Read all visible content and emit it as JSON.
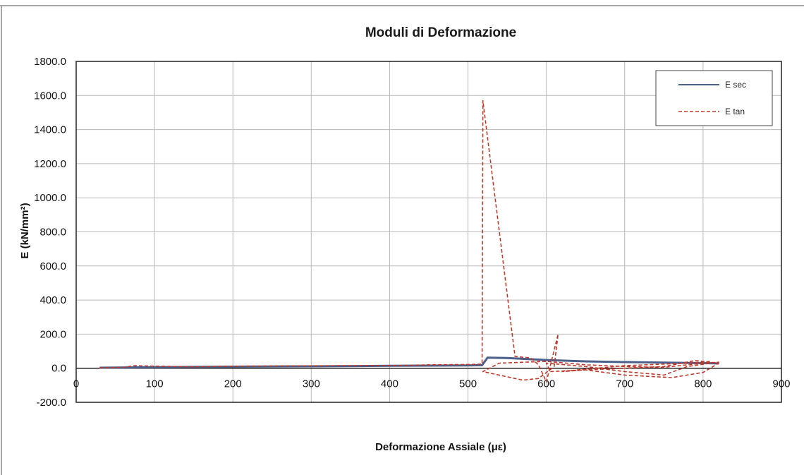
{
  "chart_data": {
    "type": "line",
    "title": "Moduli di Deformazione",
    "xlabel": "Deformazione Assiale (με)",
    "ylabel": "E (kN/mm²)",
    "xlim": [
      0,
      900
    ],
    "ylim": [
      -200,
      1800
    ],
    "x_ticks": [
      "0",
      "100",
      "200",
      "300",
      "400",
      "500",
      "600",
      "700",
      "800",
      "900"
    ],
    "y_ticks": [
      "-200.0",
      "0.0",
      "200.0",
      "400.0",
      "600.0",
      "800.0",
      "1000.0",
      "1200.0",
      "1400.0",
      "1600.0",
      "1800.0"
    ],
    "grid": true,
    "legend_position": "top-right",
    "series": [
      {
        "name": "E sec",
        "color": "#4a5f8a",
        "style": "solid",
        "x": [
          30,
          100,
          200,
          300,
          400,
          500,
          518,
          525,
          550,
          600,
          650,
          700,
          750,
          800,
          820
        ],
        "y": [
          3,
          6,
          9,
          11,
          14,
          16,
          18,
          62,
          60,
          48,
          40,
          36,
          33,
          30,
          28
        ]
      },
      {
        "name": "E tan",
        "color": "#c0392b",
        "style": "dashed",
        "x": [
          30,
          60,
          75,
          100,
          150,
          200,
          300,
          400,
          450,
          500,
          518,
          519,
          560,
          563,
          580,
          590,
          600,
          615,
          610,
          590,
          570,
          519,
          540,
          600,
          650,
          700,
          750,
          800,
          820,
          810,
          780,
          750,
          700,
          650,
          600,
          605,
          650,
          700,
          760,
          800,
          820,
          790,
          750,
          700,
          650,
          620,
          640,
          700,
          780,
          810
        ],
        "y": [
          2,
          5,
          15,
          12,
          8,
          12,
          14,
          15,
          20,
          22,
          24,
          1570,
          70,
          68,
          60,
          20,
          -80,
          200,
          10,
          -60,
          -70,
          -20,
          30,
          40,
          20,
          10,
          5,
          30,
          35,
          30,
          10,
          -40,
          -20,
          10,
          30,
          -20,
          -10,
          -40,
          -55,
          -25,
          30,
          45,
          10,
          0,
          -10,
          -20,
          -10,
          15,
          30,
          40
        ]
      }
    ]
  }
}
